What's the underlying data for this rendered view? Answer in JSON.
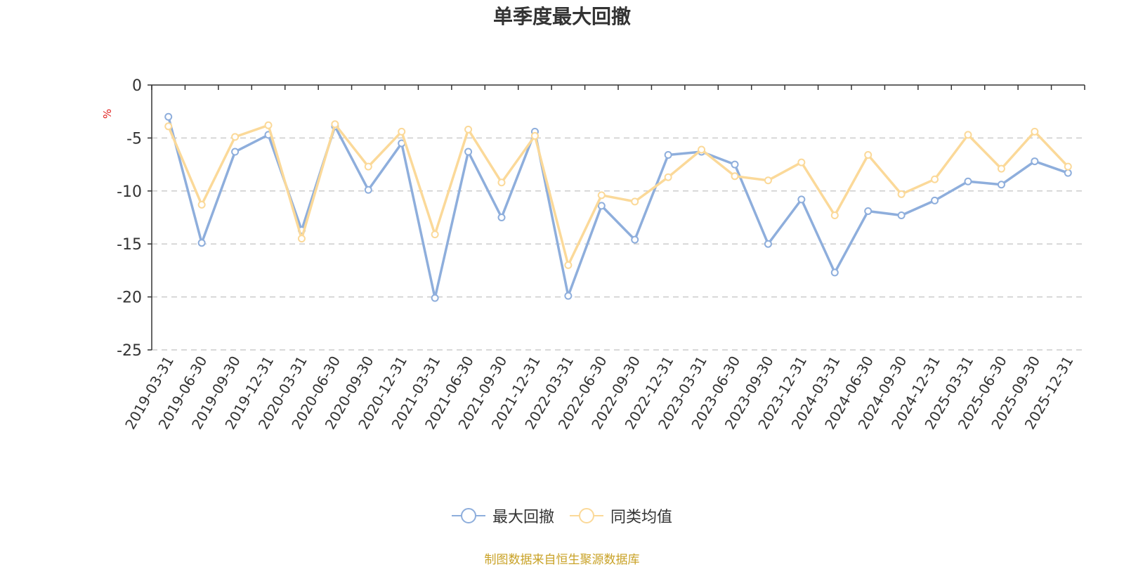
{
  "title": "单季度最大回撤",
  "source_note": "制图数据来自恒生聚源数据库",
  "colors": {
    "series_1": "#8eaedc",
    "series_2": "#fbd999",
    "grid": "#cccccc",
    "axis": "#333333",
    "text": "#333333",
    "unit": "#e0201e",
    "source": "#c9a227"
  },
  "chart_data": {
    "type": "line",
    "title": "单季度最大回撤",
    "ylabel": "%",
    "ylim": [
      -25,
      0
    ],
    "yticks": [
      0,
      -5,
      -10,
      -15,
      -20,
      -25
    ],
    "grid": "horizontal dashed",
    "legend_position": "bottom-center",
    "categories": [
      "2019-03-31",
      "2019-06-30",
      "2019-09-30",
      "2019-12-31",
      "2020-03-31",
      "2020-06-30",
      "2020-09-30",
      "2020-12-31",
      "2021-03-31",
      "2021-06-30",
      "2021-09-30",
      "2021-12-31",
      "2022-03-31",
      "2022-06-30",
      "2022-09-30",
      "2022-12-31",
      "2023-03-31",
      "2023-06-30",
      "2023-09-30",
      "2023-12-31",
      "2024-03-31",
      "2024-06-30",
      "2024-09-30",
      "2024-12-31",
      "2025-03-31",
      "2025-06-30",
      "2025-09-30",
      "2025-12-31"
    ],
    "series": [
      {
        "name": "最大回撤",
        "color": "#8eaedc",
        "values": [
          -3.0,
          -14.9,
          -6.3,
          -4.7,
          -13.7,
          -3.9,
          -9.9,
          -5.5,
          -20.1,
          -6.3,
          -12.5,
          -4.4,
          -19.9,
          -11.4,
          -14.6,
          -6.6,
          -6.3,
          -7.5,
          -15.0,
          -10.8,
          -17.7,
          -11.9,
          -12.3,
          -10.9,
          -9.1,
          -9.4,
          -7.2,
          -8.3
        ]
      },
      {
        "name": "同类均值",
        "color": "#fbd999",
        "values": [
          -3.9,
          -11.3,
          -4.9,
          -3.8,
          -14.5,
          -3.7,
          -7.7,
          -4.4,
          -14.1,
          -4.2,
          -9.2,
          -4.8,
          -17.0,
          -10.4,
          -11.0,
          -8.7,
          -6.1,
          -8.6,
          -9.0,
          -7.3,
          -12.3,
          -6.6,
          -10.3,
          -8.9,
          -4.7,
          -7.9,
          -4.4,
          -7.7
        ]
      }
    ]
  }
}
